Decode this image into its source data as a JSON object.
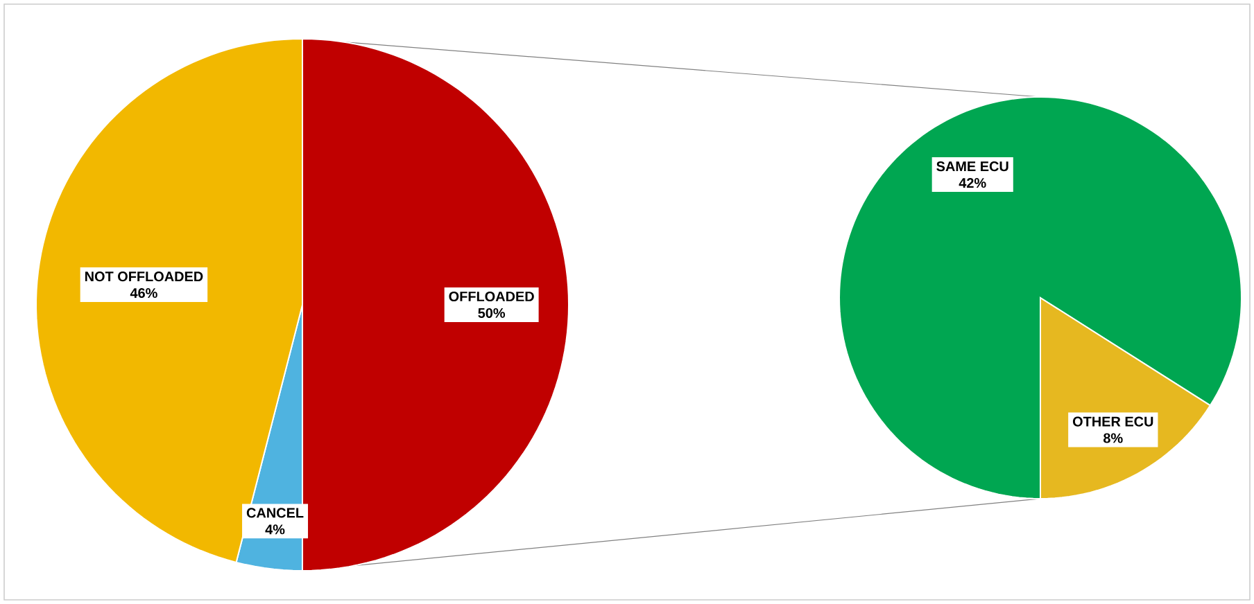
{
  "chart_data": [
    {
      "type": "pie",
      "categories": [
        "OFFLOADED",
        "CANCEL",
        "NOT OFFLOADED"
      ],
      "values": [
        50,
        4,
        46
      ],
      "colors": [
        "#c00000",
        "#4fb3e0",
        "#f2b800"
      ],
      "value_labels": [
        "50%",
        "4%",
        "46%"
      ]
    },
    {
      "type": "pie",
      "categories": [
        "SAME ECU",
        "OTHER ECU"
      ],
      "values": [
        42,
        8
      ],
      "colors": [
        "#00a651",
        "#e6b820"
      ],
      "value_labels": [
        "42%",
        "8%"
      ]
    }
  ]
}
